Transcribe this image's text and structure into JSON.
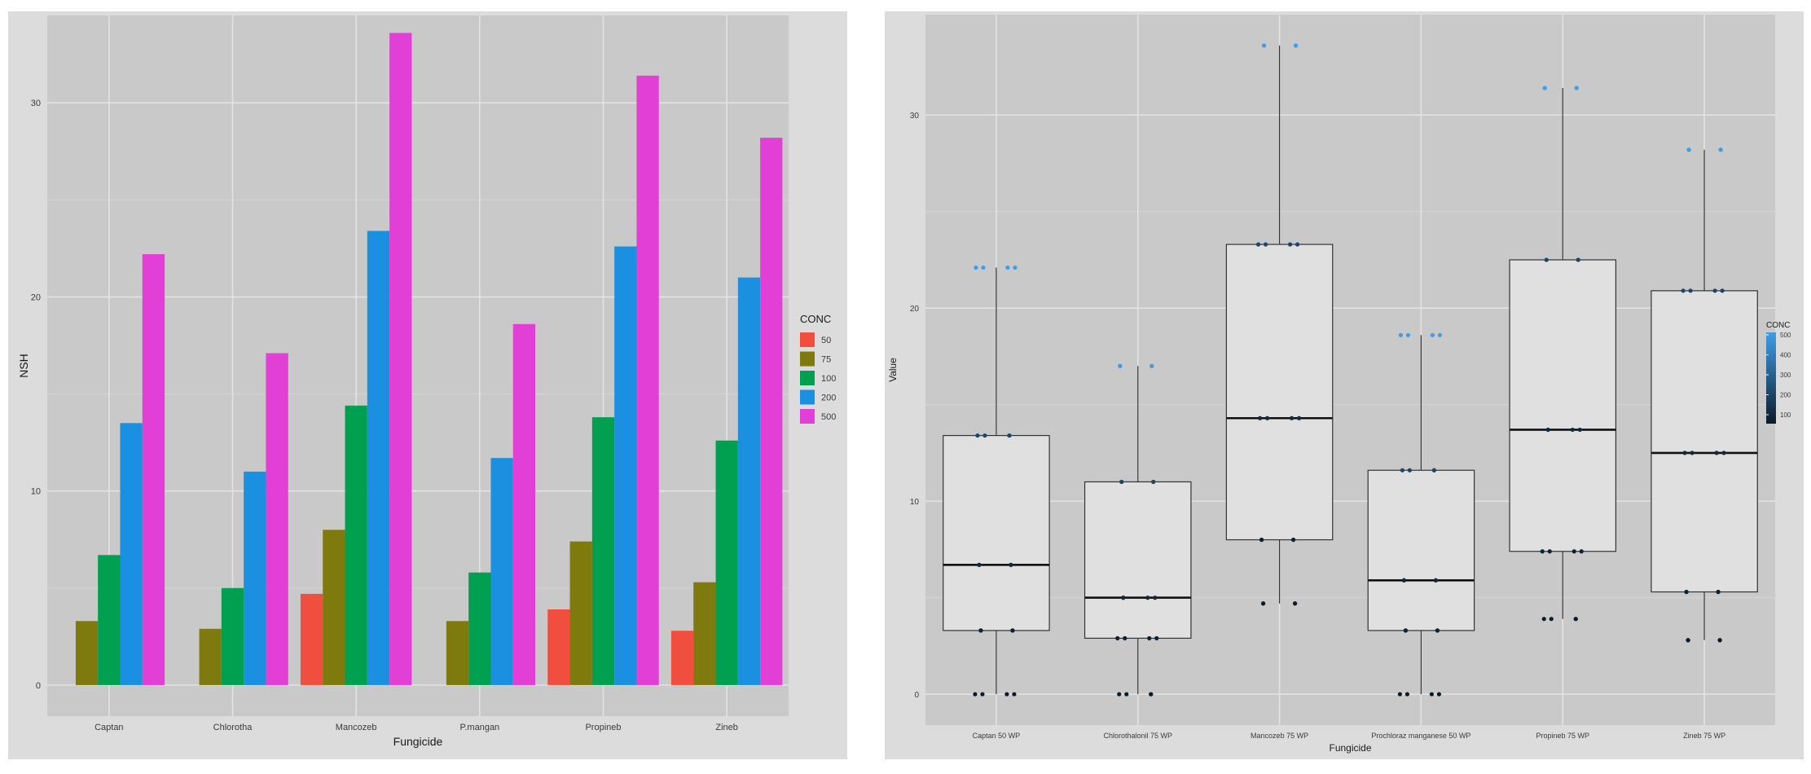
{
  "chart_data": [
    {
      "type": "bar",
      "xlabel": "Fungicide",
      "ylabel": "NSH",
      "ylim": [
        -1.6,
        34.5
      ],
      "yticks": [
        0,
        10,
        20,
        30
      ],
      "grid": true,
      "legend": {
        "title": "CONC",
        "placement": "right"
      },
      "categories": [
        "Captan",
        "Chlorotha",
        "Mancozeb",
        "P.mangan",
        "Propineb",
        "Zineb"
      ],
      "series": [
        {
          "name": "50",
          "color": "#f04e3e",
          "values": [
            0,
            0,
            4.7,
            0,
            3.9,
            2.8
          ]
        },
        {
          "name": "75",
          "color": "#7f7a0d",
          "values": [
            3.3,
            2.9,
            8.0,
            3.3,
            7.4,
            5.3
          ]
        },
        {
          "name": "100",
          "color": "#00a050",
          "values": [
            6.7,
            5.0,
            14.4,
            5.8,
            13.8,
            12.6
          ]
        },
        {
          "name": "200",
          "color": "#1b8fe0",
          "values": [
            13.5,
            11.0,
            23.4,
            11.7,
            22.6,
            21.0
          ]
        },
        {
          "name": "500",
          "color": "#e23fd6",
          "values": [
            22.2,
            17.1,
            33.6,
            18.6,
            31.4,
            28.2
          ]
        }
      ]
    },
    {
      "type": "box",
      "xlabel": "Fungicide",
      "ylabel": "Value",
      "ylim": [
        -1.6,
        35.2
      ],
      "yticks": [
        0,
        10,
        20,
        30
      ],
      "grid": true,
      "legend": {
        "title": "CONC",
        "placement": "right",
        "ticks": [
          "500",
          "400",
          "300",
          "200",
          "100"
        ],
        "low_color": "#0c1b2a",
        "high_color": "#3d9ee8"
      },
      "categories": [
        "Captan 50 WP",
        "Chlorothalonil 75 WP",
        "Mancozeb 75 WP",
        "Prochloraz manganese 50 WP",
        "Propineb 75 WP",
        "Zineb 75 WP"
      ],
      "boxes": [
        {
          "whisker_low": 0,
          "q1": 3.3,
          "median": 6.7,
          "q3": 13.4,
          "whisker_high": 22.1
        },
        {
          "whisker_low": 0,
          "q1": 2.9,
          "median": 5.0,
          "q3": 11.0,
          "whisker_high": 17.0
        },
        {
          "whisker_low": 4.7,
          "q1": 8.0,
          "median": 14.3,
          "q3": 23.3,
          "whisker_high": 33.6
        },
        {
          "whisker_low": 0,
          "q1": 3.3,
          "median": 5.9,
          "q3": 11.6,
          "whisker_high": 18.6
        },
        {
          "whisker_low": 3.9,
          "q1": 7.4,
          "median": 13.7,
          "q3": 22.5,
          "whisker_high": 31.4
        },
        {
          "whisker_low": 2.8,
          "q1": 5.3,
          "median": 12.5,
          "q3": 20.9,
          "whisker_high": 28.2
        }
      ],
      "points": [
        {
          "conc": 50,
          "values": [
            0,
            0,
            4.7,
            0,
            3.9,
            2.8
          ]
        },
        {
          "conc": 75,
          "values": [
            3.3,
            2.9,
            8.0,
            3.3,
            7.4,
            5.3
          ]
        },
        {
          "conc": 100,
          "values": [
            6.7,
            5.0,
            14.3,
            5.9,
            13.7,
            12.5
          ]
        },
        {
          "conc": 200,
          "values": [
            13.4,
            11.0,
            23.3,
            11.6,
            22.5,
            20.9
          ]
        },
        {
          "conc": 500,
          "values": [
            22.1,
            17.0,
            33.6,
            18.6,
            31.4,
            28.2
          ]
        }
      ]
    }
  ]
}
